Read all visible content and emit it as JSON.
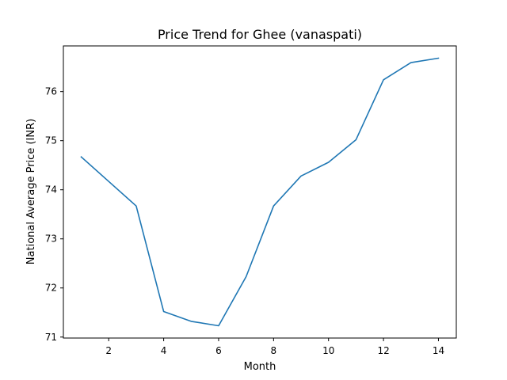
{
  "chart_data": {
    "type": "line",
    "title": "Price Trend for Ghee (vanaspati)",
    "xlabel": "Month",
    "ylabel": "National Average Price (INR)",
    "xlim": [
      0.35,
      14.65
    ],
    "ylim": [
      70.98,
      76.93
    ],
    "xticks": [
      2,
      4,
      6,
      8,
      10,
      12,
      14
    ],
    "yticks": [
      71,
      72,
      73,
      74,
      75,
      76
    ],
    "grid": false,
    "line_color": "#1f77b4",
    "series": [
      {
        "x": [
          1,
          2,
          3,
          4,
          5,
          6,
          7,
          8,
          9,
          10,
          11,
          12,
          13,
          14
        ],
        "values": [
          74.67,
          74.17,
          73.67,
          71.52,
          71.32,
          71.23,
          72.23,
          73.67,
          74.28,
          74.56,
          75.02,
          76.24,
          76.59,
          76.68
        ]
      }
    ]
  }
}
